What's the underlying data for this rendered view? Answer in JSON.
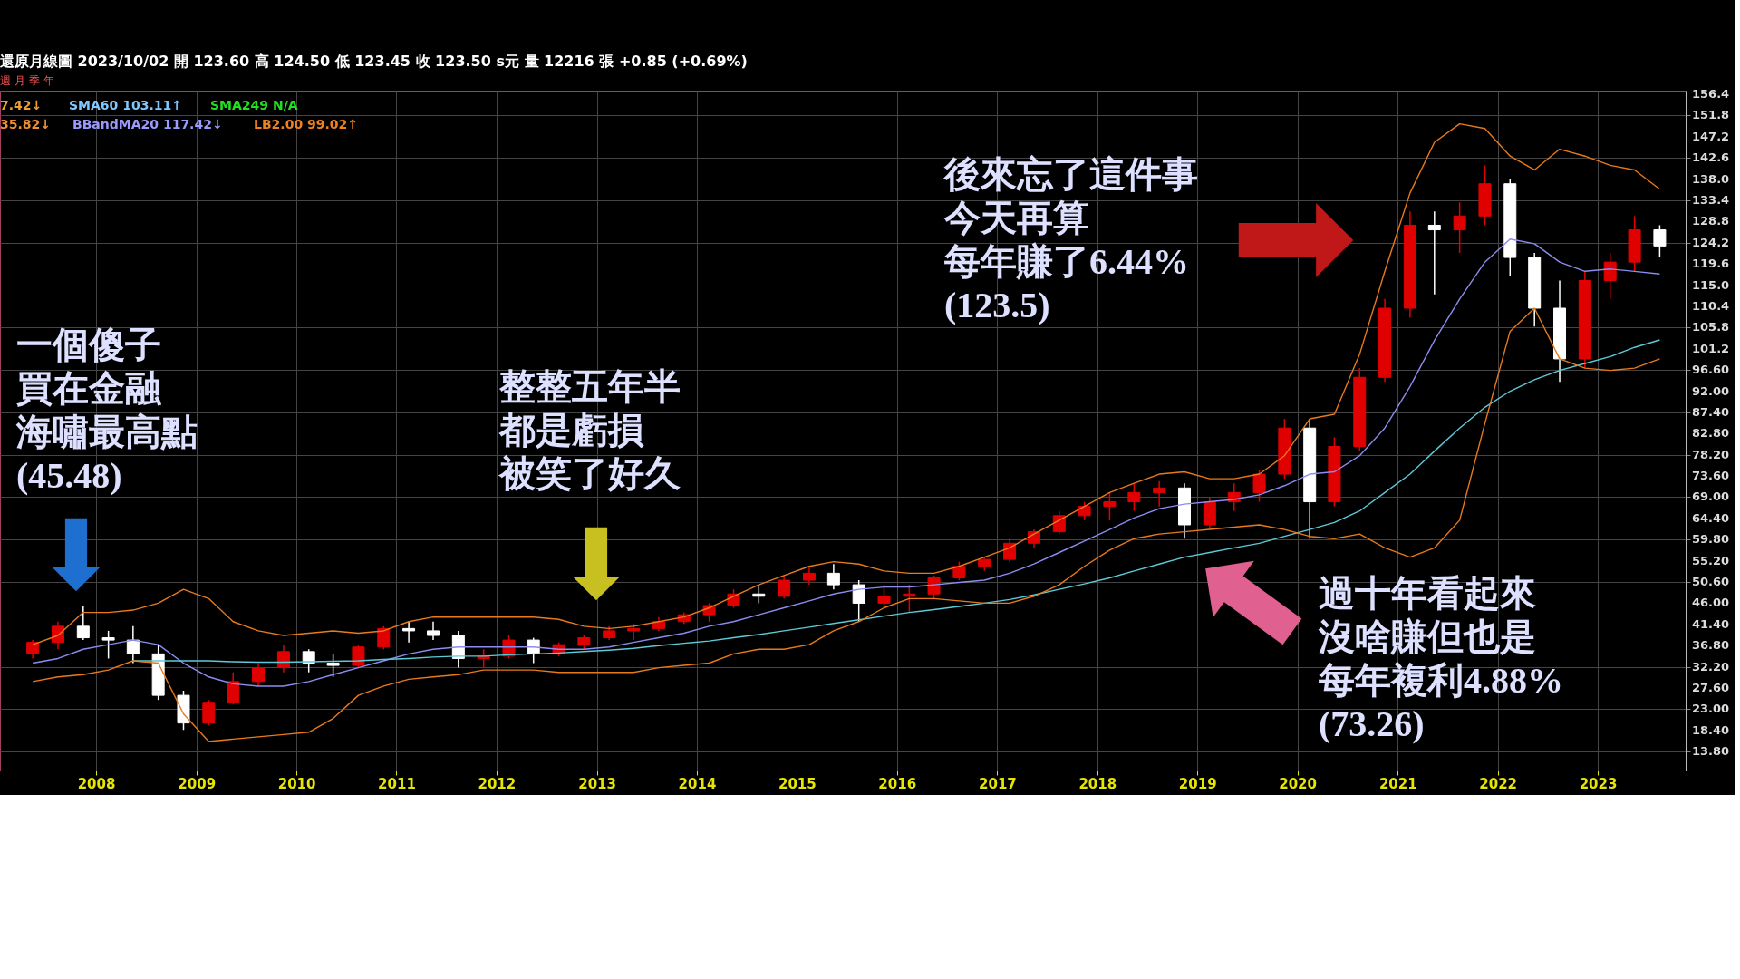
{
  "chart_data": {
    "type": "candlestick",
    "x": [
      "2007-05",
      "2007-08",
      "2007-11",
      "2008-02",
      "2008-05",
      "2008-08",
      "2008-11",
      "2009-02",
      "2009-05",
      "2009-08",
      "2009-11",
      "2010-02",
      "2010-05",
      "2010-08",
      "2010-11",
      "2011-02",
      "2011-05",
      "2011-08",
      "2011-11",
      "2012-02",
      "2012-05",
      "2012-08",
      "2012-11",
      "2013-02",
      "2013-05",
      "2013-08",
      "2013-11",
      "2014-02",
      "2014-05",
      "2014-08",
      "2014-11",
      "2015-02",
      "2015-05",
      "2015-08",
      "2015-11",
      "2016-02",
      "2016-05",
      "2016-08",
      "2016-11",
      "2017-02",
      "2017-05",
      "2017-08",
      "2017-11",
      "2018-02",
      "2018-05",
      "2018-08",
      "2018-11",
      "2019-02",
      "2019-05",
      "2019-08",
      "2019-11",
      "2020-02",
      "2020-05",
      "2020-08",
      "2020-11",
      "2021-02",
      "2021-05",
      "2021-08",
      "2021-11",
      "2022-02",
      "2022-05",
      "2022-08",
      "2022-11",
      "2023-02",
      "2023-05",
      "2023-08"
    ],
    "ohlc": [
      [
        35,
        38,
        34,
        37.5
      ],
      [
        37.5,
        42,
        36,
        41
      ],
      [
        41,
        45.48,
        38,
        38.5
      ],
      [
        38.5,
        40,
        34,
        38
      ],
      [
        38,
        41,
        33,
        35
      ],
      [
        35,
        37,
        25,
        26
      ],
      [
        26,
        27,
        18.5,
        20
      ],
      [
        20,
        25,
        19.5,
        24.5
      ],
      [
        24.5,
        31,
        24,
        29
      ],
      [
        29,
        33,
        28,
        32
      ],
      [
        32,
        37,
        31,
        35.5
      ],
      [
        35.5,
        36,
        31,
        33
      ],
      [
        33,
        35,
        30,
        32.5
      ],
      [
        32.5,
        37,
        32,
        36.5
      ],
      [
        36.5,
        41,
        36,
        40.5
      ],
      [
        40.5,
        42,
        37.5,
        40
      ],
      [
        40,
        42,
        38,
        39
      ],
      [
        39,
        40,
        32,
        34
      ],
      [
        34,
        36,
        32,
        34.5
      ],
      [
        34.5,
        39,
        34,
        38
      ],
      [
        38,
        38.5,
        33,
        35
      ],
      [
        35,
        37.5,
        34.5,
        37
      ],
      [
        37,
        39,
        36,
        38.5
      ],
      [
        38.5,
        41,
        38,
        40
      ],
      [
        40,
        41.5,
        38,
        40.5
      ],
      [
        40.5,
        43,
        40,
        42
      ],
      [
        42,
        44,
        41.5,
        43.5
      ],
      [
        43.5,
        46,
        42,
        45.5
      ],
      [
        45.5,
        49,
        45,
        48
      ],
      [
        48,
        50,
        46,
        47.5
      ],
      [
        47.5,
        52,
        47,
        51
      ],
      [
        51,
        54,
        50,
        52.5
      ],
      [
        52.5,
        54.5,
        49,
        50
      ],
      [
        50,
        51,
        42,
        46
      ],
      [
        46,
        50,
        45,
        47.5
      ],
      [
        47.5,
        50,
        44,
        48
      ],
      [
        48,
        52,
        47,
        51.5
      ],
      [
        51.5,
        55,
        51,
        54
      ],
      [
        54,
        56,
        53,
        55.5
      ],
      [
        55.5,
        60,
        55,
        59
      ],
      [
        59,
        62,
        58,
        61.5
      ],
      [
        61.5,
        66,
        61,
        65
      ],
      [
        65,
        68,
        64,
        67
      ],
      [
        67,
        70,
        64,
        68
      ],
      [
        68,
        72,
        66,
        70
      ],
      [
        70,
        72.5,
        67,
        71
      ],
      [
        71,
        72,
        60,
        63
      ],
      [
        63,
        69,
        62,
        68
      ],
      [
        68,
        72,
        66,
        70
      ],
      [
        70,
        75,
        68,
        74
      ],
      [
        74,
        86,
        73,
        84
      ],
      [
        84,
        86,
        60,
        68
      ],
      [
        68,
        82,
        67,
        80
      ],
      [
        80,
        97,
        79,
        95
      ],
      [
        95,
        112,
        94,
        110
      ],
      [
        110,
        131,
        108,
        128
      ],
      [
        128,
        131,
        113,
        127
      ],
      [
        127,
        133,
        122,
        130
      ],
      [
        130,
        141,
        128,
        137
      ],
      [
        137,
        138,
        117,
        121
      ],
      [
        121,
        122,
        106,
        110
      ],
      [
        110,
        116,
        94,
        99
      ],
      [
        99,
        118,
        97,
        116
      ],
      [
        116,
        122,
        112,
        120
      ],
      [
        120,
        130,
        118,
        127
      ],
      [
        127,
        128,
        121,
        123.5
      ]
    ],
    "colors": [
      "#e00000",
      "#e00000",
      "#ffffff",
      "#ffffff",
      "#ffffff",
      "#ffffff",
      "#ffffff",
      "#e00000",
      "#e00000",
      "#e00000",
      "#e00000",
      "#ffffff",
      "#ffffff",
      "#e00000",
      "#e00000",
      "#ffffff",
      "#ffffff",
      "#ffffff",
      "#e00000",
      "#e00000",
      "#ffffff",
      "#e00000",
      "#e00000",
      "#e00000",
      "#e00000",
      "#e00000",
      "#e00000",
      "#e00000",
      "#e00000",
      "#ffffff",
      "#e00000",
      "#e00000",
      "#ffffff",
      "#ffffff",
      "#e00000",
      "#e00000",
      "#e00000",
      "#e00000",
      "#e00000",
      "#e00000",
      "#e00000",
      "#e00000",
      "#e00000",
      "#e00000",
      "#e00000",
      "#e00000",
      "#ffffff",
      "#e00000",
      "#e00000",
      "#e00000",
      "#e00000",
      "#ffffff",
      "#e00000",
      "#e00000",
      "#e00000",
      "#e00000",
      "#ffffff",
      "#e00000",
      "#e00000",
      "#ffffff",
      "#ffffff",
      "#ffffff",
      "#e00000",
      "#e00000",
      "#e00000",
      "#ffffff"
    ],
    "series": [
      {
        "type": "line",
        "color": "#8c8cf0",
        "values": [
          33,
          34,
          36,
          37,
          38,
          37,
          33,
          30,
          28.5,
          28,
          28,
          29,
          30.5,
          32,
          33.5,
          35,
          36,
          36.5,
          36.5,
          36.5,
          36.5,
          36,
          36,
          36.5,
          37.5,
          38.5,
          39.5,
          41,
          42,
          43.5,
          45,
          46.5,
          48,
          49,
          49.5,
          49.5,
          50,
          50.5,
          51,
          52.5,
          54.5,
          57,
          59.5,
          62,
          64.5,
          66.5,
          67.5,
          68,
          68.5,
          69.5,
          71.5,
          74,
          74.5,
          78,
          84,
          93,
          103,
          112,
          120,
          125,
          124,
          120,
          118,
          118.5,
          118,
          117.42
        ]
      },
      {
        "type": "line",
        "color": "#5ccbd8",
        "values": [
          null,
          null,
          null,
          null,
          33.5,
          33.5,
          33.5,
          33.5,
          33.3,
          33.2,
          33.2,
          33.3,
          33.4,
          33.5,
          33.8,
          34,
          34.3,
          34.5,
          34.5,
          34.8,
          35,
          35.2,
          35.5,
          35.8,
          36.2,
          36.8,
          37.3,
          37.8,
          38.5,
          39.2,
          40,
          40.8,
          41.6,
          42.4,
          43.2,
          44,
          44.6,
          45.3,
          46,
          46.8,
          47.8,
          49,
          50.2,
          51.5,
          53,
          54.5,
          56,
          57,
          58,
          59,
          60.5,
          62,
          63.5,
          66,
          70,
          74,
          79,
          84,
          88.5,
          92,
          94.5,
          96.5,
          98,
          99.5,
          101.5,
          103.11
        ]
      },
      {
        "type": "line",
        "color": "#e87a1c",
        "values": [
          37,
          39,
          44,
          44,
          44.5,
          46,
          49,
          47,
          42,
          40,
          39,
          39.5,
          40,
          39.5,
          40,
          42,
          43,
          43,
          43,
          43,
          43,
          42.5,
          41,
          40.5,
          41,
          42,
          43,
          45,
          47.5,
          50,
          52,
          54,
          55,
          54.5,
          53,
          52.5,
          52.5,
          54,
          56,
          58,
          61,
          64,
          67,
          70,
          72,
          74,
          74.5,
          73,
          73,
          74,
          78,
          86,
          87,
          100,
          118,
          135,
          146,
          150,
          149,
          143,
          140,
          144.5,
          143,
          141,
          140,
          135.82
        ]
      },
      {
        "type": "line",
        "color": "#e87a1c",
        "values": [
          29,
          30,
          30.5,
          31.5,
          33.5,
          33,
          22,
          16,
          16.5,
          17,
          17.5,
          18,
          21,
          26,
          28,
          29.5,
          30,
          30.5,
          31.5,
          31.5,
          31.5,
          31,
          31,
          31,
          31,
          32,
          32.5,
          33,
          35,
          36,
          36,
          37,
          40,
          42,
          45,
          47,
          47,
          46.5,
          46,
          46,
          47.5,
          50,
          54,
          57.5,
          60,
          61,
          61.5,
          62,
          62.5,
          63,
          62,
          60.5,
          60,
          61,
          58,
          56,
          58,
          64,
          85,
          105,
          110,
          99,
          97,
          96.5,
          97,
          99.02
        ]
      }
    ],
    "xlim": [
      "2007-02",
      "2023-11"
    ],
    "xticks": [
      "2008",
      "2009",
      "2010",
      "2011",
      "2012",
      "2013",
      "2014",
      "2015",
      "2016",
      "2017",
      "2018",
      "2019",
      "2020",
      "2021",
      "2022",
      "2023"
    ],
    "ylim": [
      9.7,
      157.2
    ],
    "yticks": [
      {
        "value": 13.8,
        "label": "13.80"
      },
      {
        "value": 18.4,
        "label": "18.40"
      },
      {
        "value": 23,
        "label": "23.00"
      },
      {
        "value": 27.6,
        "label": "27.60"
      },
      {
        "value": 32.2,
        "label": "32.20"
      },
      {
        "value": 36.8,
        "label": "36.80"
      },
      {
        "value": 41.4,
        "label": "41.40"
      },
      {
        "value": 46,
        "label": "46.00"
      },
      {
        "value": 50.6,
        "label": "50.60"
      },
      {
        "value": 55.2,
        "label": "55.20"
      },
      {
        "value": 59.8,
        "label": "59.80"
      },
      {
        "value": 64.4,
        "label": "64.40"
      },
      {
        "value": 69,
        "label": "69.00"
      },
      {
        "value": 73.6,
        "label": "73.60"
      },
      {
        "value": 78.2,
        "label": "78.20"
      },
      {
        "value": 82.8,
        "label": "82.80"
      },
      {
        "value": 87.4,
        "label": "87.40"
      },
      {
        "value": 92,
        "label": "92.00"
      },
      {
        "value": 96.6,
        "label": "96.60"
      },
      101.2,
      105.8,
      110.4,
      {
        "value": 115,
        "label": "115.0"
      },
      119.6,
      124.2,
      128.8,
      133.4,
      {
        "value": 138,
        "label": "138.0"
      },
      142.6,
      147.2,
      151.8,
      156.4
    ],
    "grid": true,
    "annotations": [
      "還原月線圖  2023/10/02  開 123.60  高 124.50  低 123.45  收 123.50 s元  量 12216 張  +0.85 (+0.69%)",
      "週",
      "月",
      "季",
      "年",
      "7.42↓",
      "SMA60 103.11↑",
      "SMA249 N/A",
      "35.82↓",
      "BBandMA20 117.42↓",
      "LB2.00 99.02↑",
      "一個傻子",
      "買在金融",
      "海嘯最高點",
      "(45.48)",
      "整整五年半",
      "都是虧損",
      "被笑了好久",
      "後來忘了這件事",
      "今天再算",
      "每年賺了6.44%",
      "(123.5)",
      "過十年看起來",
      "沒啥賺但也是",
      "每年複利4.88%",
      "(73.26)"
    ]
  }
}
